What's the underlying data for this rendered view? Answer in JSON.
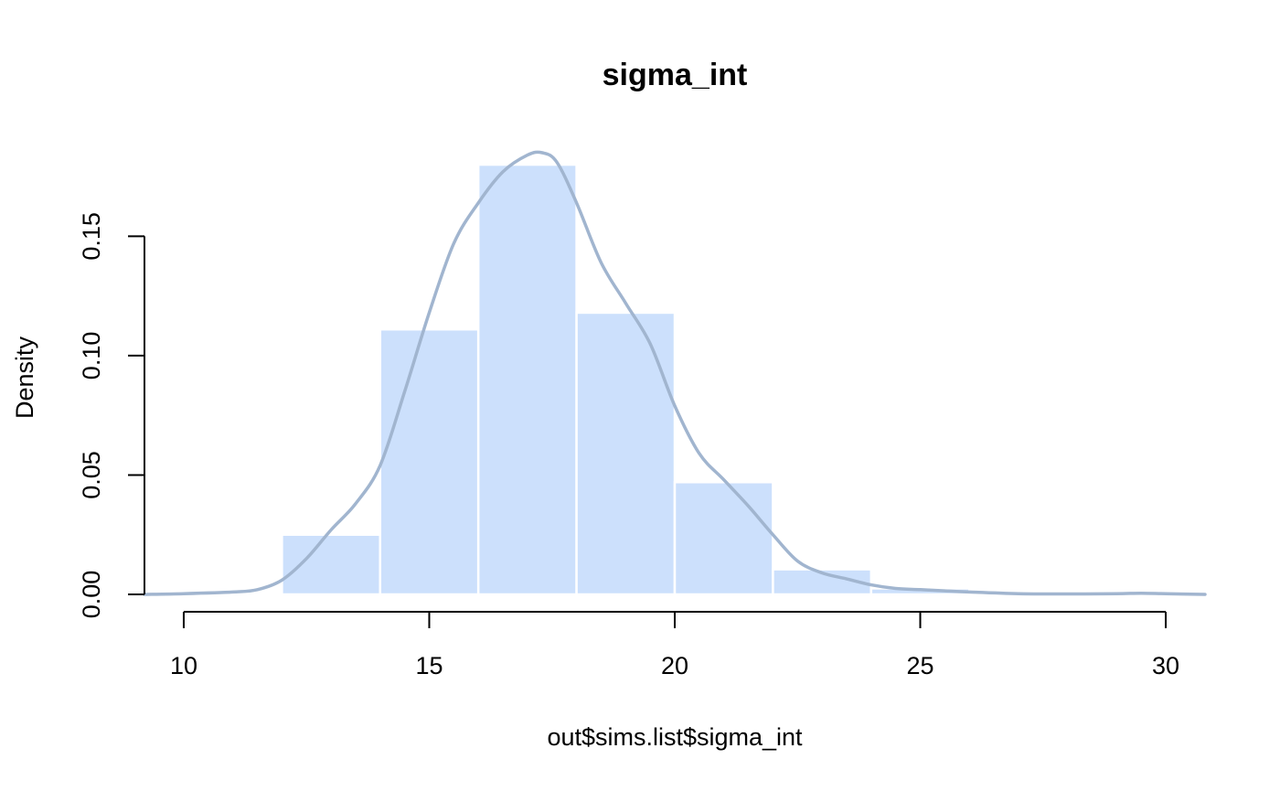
{
  "chart_data": {
    "type": "bar",
    "title": "sigma_int",
    "xlabel": "out$sims.list$sigma_int",
    "ylabel": "Density",
    "xlim": [
      9.2,
      30.8
    ],
    "ylim": [
      0,
      0.185
    ],
    "x_ticks": [
      10,
      15,
      20,
      25,
      30
    ],
    "x_tick_labels": [
      "10",
      "15",
      "20",
      "25",
      "30"
    ],
    "y_ticks": [
      0,
      0.05,
      0.1,
      0.15
    ],
    "y_tick_labels": [
      "0.00",
      "0.05",
      "0.10",
      "0.15"
    ],
    "histogram": {
      "name": "histogram",
      "bin_edges": [
        10,
        12,
        14,
        16,
        18,
        20,
        22,
        24,
        26,
        28,
        30
      ],
      "values": [
        0.0002,
        0.025,
        0.111,
        0.18,
        0.118,
        0.047,
        0.0105,
        0.0025,
        0.0002,
        0.0002
      ],
      "color": "#cce0fc"
    },
    "density": {
      "name": "density",
      "type": "line",
      "color": "#a1b5cf",
      "x": [
        9.2,
        10.0,
        11.0,
        11.5,
        12.0,
        12.5,
        13.0,
        13.5,
        14.0,
        14.5,
        15.0,
        15.5,
        16.0,
        16.5,
        17.0,
        17.3,
        17.6,
        18.0,
        18.5,
        19.0,
        19.5,
        20.0,
        20.5,
        21.0,
        21.5,
        22.0,
        22.5,
        23.0,
        23.5,
        24.0,
        24.5,
        25.0,
        25.5,
        26.0,
        27.0,
        28.0,
        29.0,
        29.5,
        30.0,
        30.8
      ],
      "y": [
        0.0,
        0.0003,
        0.001,
        0.002,
        0.006,
        0.015,
        0.027,
        0.038,
        0.054,
        0.085,
        0.118,
        0.147,
        0.164,
        0.177,
        0.184,
        0.185,
        0.181,
        0.164,
        0.139,
        0.122,
        0.105,
        0.079,
        0.059,
        0.048,
        0.037,
        0.025,
        0.014,
        0.009,
        0.0065,
        0.004,
        0.0025,
        0.002,
        0.0015,
        0.001,
        0.0003,
        0.0002,
        0.0003,
        0.0005,
        0.0003,
        0.0
      ]
    }
  }
}
